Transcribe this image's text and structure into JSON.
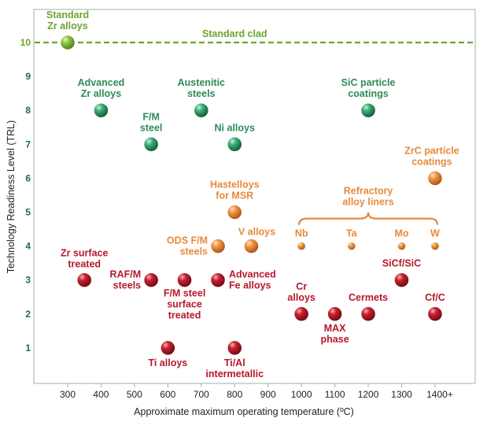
{
  "chart_data": {
    "type": "scatter",
    "xlabel": "Approximate maximum operating temperature (ºC)",
    "ylabel": "Technology Readiness Level (TRL)",
    "x_ticks": [
      "300",
      "400",
      "500",
      "600",
      "700",
      "800",
      "900",
      "1000",
      "1100",
      "1200",
      "1300",
      "1400+"
    ],
    "y_ticks": [
      "1",
      "2",
      "3",
      "4",
      "5",
      "6",
      "7",
      "8",
      "9",
      "10"
    ],
    "xlim": [
      200,
      1500
    ],
    "ylim": [
      0,
      11
    ],
    "grid": false,
    "reference_line": {
      "y": 10,
      "label": "Standard clad"
    },
    "colors": {
      "green": "#2e8b57",
      "orange": "#e8893a",
      "red": "#b5182a",
      "light_green": "#6aa52e"
    },
    "points": [
      {
        "x": 300,
        "y": 10,
        "group": "light_green",
        "label": "Standard\nZr alloys"
      },
      {
        "x": 400,
        "y": 8,
        "group": "green",
        "label": "Advanced\nZr alloys"
      },
      {
        "x": 550,
        "y": 7,
        "group": "green",
        "label": "F/M\nsteel"
      },
      {
        "x": 700,
        "y": 8,
        "group": "green",
        "label": "Austenitic\nsteels"
      },
      {
        "x": 800,
        "y": 7,
        "group": "green",
        "label": "Ni alloys"
      },
      {
        "x": 1200,
        "y": 8,
        "group": "green",
        "label": "SiC particle\ncoatings"
      },
      {
        "x": 1400,
        "y": 6,
        "group": "orange",
        "label": "ZrC particle\ncoatings"
      },
      {
        "x": 800,
        "y": 5,
        "group": "orange",
        "label": "Hastelloys\nfor MSR"
      },
      {
        "x": 750,
        "y": 4,
        "group": "orange",
        "label": "ODS F/M\nsteels"
      },
      {
        "x": 850,
        "y": 4,
        "group": "orange",
        "label": "V alloys"
      },
      {
        "x": 1000,
        "y": 4,
        "group": "orange",
        "label": "Nb",
        "small": true
      },
      {
        "x": 1150,
        "y": 4,
        "group": "orange",
        "label": "Ta",
        "small": true
      },
      {
        "x": 1300,
        "y": 4,
        "group": "orange",
        "label": "Mo",
        "small": true
      },
      {
        "x": 1400,
        "y": 4,
        "group": "orange",
        "label": "W",
        "small": true
      },
      {
        "x": 350,
        "y": 3,
        "group": "red",
        "label": "Zr surface\ntreated"
      },
      {
        "x": 550,
        "y": 3,
        "group": "red",
        "label": "RAF/M\nsteels"
      },
      {
        "x": 650,
        "y": 3,
        "group": "red",
        "label": "F/M steel\nsurface\ntreated"
      },
      {
        "x": 750,
        "y": 3,
        "group": "red",
        "label": "Advanced\nFe alloys"
      },
      {
        "x": 1300,
        "y": 3,
        "group": "red",
        "label": "SiCf/SiC"
      },
      {
        "x": 1000,
        "y": 2,
        "group": "red",
        "label": "Cr\nalloys"
      },
      {
        "x": 1100,
        "y": 2,
        "group": "red",
        "label": "MAX\nphase"
      },
      {
        "x": 1200,
        "y": 2,
        "group": "red",
        "label": "Cermets"
      },
      {
        "x": 1400,
        "y": 2,
        "group": "red",
        "label": "Cf/C"
      },
      {
        "x": 600,
        "y": 1,
        "group": "red",
        "label": "Ti alloys"
      },
      {
        "x": 800,
        "y": 1,
        "group": "red",
        "label": "Ti/Al\nintermetallic"
      }
    ],
    "annotations": [
      {
        "text": "Refractory\nalloy liners",
        "group": "orange",
        "brace_from": 1000,
        "brace_to": 1400,
        "y": 4
      }
    ]
  }
}
